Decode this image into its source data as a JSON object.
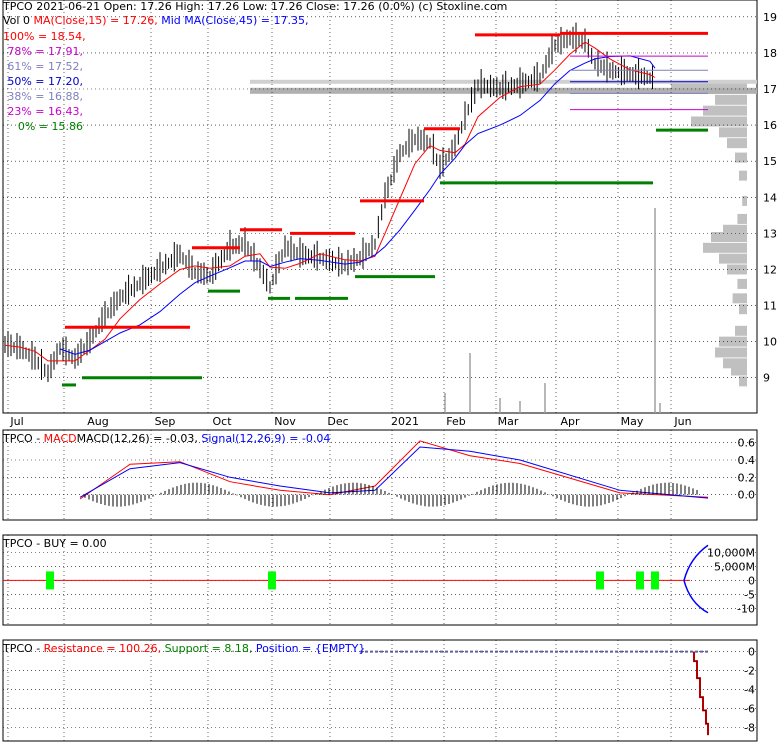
{
  "header": {
    "symbol": "TPCO",
    "date": "2021-06-21",
    "open_label": "Open:",
    "open": "17.26",
    "high_label": "High:",
    "high": "17.26",
    "low_label": "Low:",
    "low": "17.26",
    "close_label": "Close:",
    "close": "17.26",
    "change": "(0.0%)",
    "source": "(c) Stoxline.com"
  },
  "ma_legend": {
    "vol": "Vol 0",
    "ma15": "MA(Close,15) = 17.26,",
    "ma45": "Mid MA(Close,45) = 17.35,"
  },
  "fib_levels": [
    {
      "label": "100% = 18.54,",
      "value": 18.54,
      "color": "#ff0000"
    },
    {
      "label": "78% = 17.91,",
      "value": 17.91,
      "color": "#cc00cc"
    },
    {
      "label": "61% = 17.52,",
      "value": 17.52,
      "color": "#8080c0"
    },
    {
      "label": "50% = 17.20,",
      "value": 17.2,
      "color": "#0000cc"
    },
    {
      "label": "38% = 16.88,",
      "value": 16.88,
      "color": "#8080c0"
    },
    {
      "label": "23% = 16.43,",
      "value": 16.43,
      "color": "#cc00cc"
    },
    {
      "label": "0% = 15.86",
      "value": 15.86,
      "color": "#008000"
    }
  ],
  "panels": {
    "macd": {
      "prefix": "TPCO - ",
      "name": "MACD",
      "main": "MACD(12,26) = -0.03,",
      "signal": "Signal(12,26,9) = -0.04"
    },
    "buy": {
      "label": "TPCO - BUY = 0.00"
    },
    "resistance": {
      "prefix": "TPCO - ",
      "resistance": "Resistance = 100.26,",
      "support": "Support = 8.18,",
      "position": "Position = {EMPTY}"
    }
  },
  "colors": {
    "price_line": "#ff0000",
    "ma45_line": "#0000ff",
    "support": "#008000",
    "resistance": "#ff0000",
    "buy_marker": "#00ff00",
    "volume_profile": "#c0c0c0",
    "grid": "#000000"
  },
  "chart_data": [
    {
      "type": "line",
      "title": "TPCO 2021-06-21 Open: 17.26 High: 17.26 Low: 17.26 Close: 17.26 (0.0%)",
      "x_labels": [
        "Jul",
        "Aug",
        "Sep",
        "Oct",
        "Nov",
        "Dec",
        "2021",
        "Feb",
        "Mar",
        "Apr",
        "May",
        "Jun"
      ],
      "y_ticks": [
        9,
        10,
        11,
        12,
        13,
        14,
        15,
        16,
        17,
        18,
        19
      ],
      "ylim": [
        8.3,
        19.3
      ],
      "x": [
        "Jun",
        "Jul",
        "Aug",
        "Sep",
        "Oct",
        "Nov",
        "Dec",
        "2021",
        "Feb",
        "Mar",
        "Apr",
        "May",
        "Jun"
      ],
      "series": [
        {
          "name": "Close",
          "values": [
            9.8,
            9.6,
            10.8,
            11.9,
            12.5,
            12.4,
            12.1,
            14.3,
            15.6,
            17.1,
            18.4,
            17.4,
            17.26
          ]
        },
        {
          "name": "MA(Close,15)",
          "values": [
            9.9,
            9.7,
            10.5,
            11.5,
            12.3,
            12.2,
            12.1,
            13.6,
            15.4,
            16.9,
            18.0,
            17.6,
            17.26
          ]
        },
        {
          "name": "Mid MA(Close,45)",
          "values": [
            null,
            9.6,
            10.2,
            11.0,
            11.9,
            12.1,
            12.0,
            12.8,
            14.6,
            16.2,
            17.3,
            17.5,
            17.35
          ]
        }
      ],
      "grid": true
    },
    {
      "type": "line",
      "title": "TPCO - MACD MACD(12,26) = -0.03, Signal(12,26,9) = -0.04",
      "y_ticks": [
        0.0,
        0.2,
        0.4,
        0.6
      ],
      "ylim": [
        -0.2,
        0.7
      ],
      "x": [
        "Jul",
        "Aug",
        "Sep",
        "Oct",
        "Nov",
        "Dec",
        "2021",
        "Feb",
        "Mar",
        "Apr",
        "May",
        "Jun"
      ],
      "series": [
        {
          "name": "MACD",
          "values": [
            -0.05,
            0.35,
            0.38,
            0.15,
            0.05,
            0.0,
            0.1,
            0.62,
            0.45,
            0.36,
            0.02,
            -0.03
          ]
        },
        {
          "name": "Signal",
          "values": [
            -0.03,
            0.3,
            0.37,
            0.2,
            0.1,
            0.02,
            0.05,
            0.55,
            0.5,
            0.4,
            0.05,
            -0.04
          ]
        }
      ],
      "grid": true
    },
    {
      "type": "line",
      "title": "TPCO - BUY = 0.00",
      "y_ticks": [
        -10,
        -5,
        0,
        5,
        10
      ],
      "y_tick_labels": [
        "-10",
        "-5",
        "0",
        "5,000M",
        "10,000M"
      ],
      "ylim": [
        -13,
        14
      ],
      "series": [
        {
          "name": "BUY",
          "values": [
            0.0
          ]
        }
      ],
      "grid": true
    },
    {
      "type": "line",
      "title": "TPCO - Resistance = 100.26, Support = 8.18, Position = {EMPTY}",
      "y_ticks": [
        -8,
        -6,
        -4,
        -2,
        0
      ],
      "ylim": [
        -9,
        0.8
      ],
      "series": [
        {
          "name": "Position",
          "values": [
            -1.5,
            -3.5,
            -5.5,
            -7.0,
            -8.5
          ]
        }
      ],
      "grid": true
    }
  ]
}
